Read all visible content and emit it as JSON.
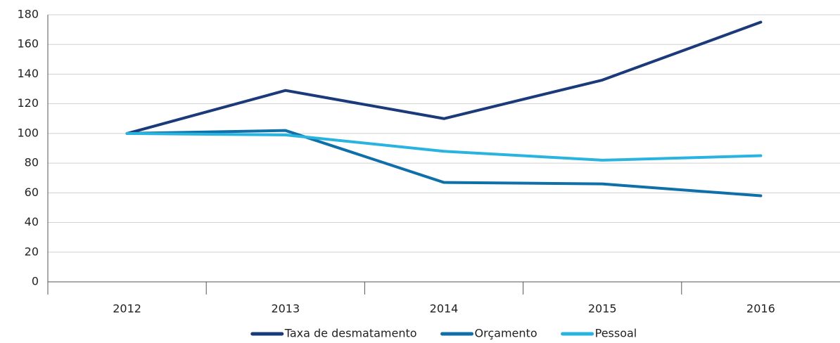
{
  "chart_data": {
    "type": "line",
    "categories": [
      "2012",
      "2013",
      "2014",
      "2015",
      "2016"
    ],
    "series": [
      {
        "name": "Taxa de desmatamento",
        "color": "#1b3a7a",
        "values": [
          100,
          129,
          110,
          136,
          175
        ]
      },
      {
        "name": "Orçamento",
        "color": "#0f6fa8",
        "values": [
          100,
          102,
          67,
          66,
          58
        ]
      },
      {
        "name": "Pessoal",
        "color": "#29b4e0",
        "values": [
          100,
          99,
          88,
          82,
          85
        ]
      }
    ],
    "ylim": [
      0,
      180
    ],
    "yticks": [
      0,
      20,
      40,
      60,
      80,
      100,
      120,
      140,
      160,
      180
    ],
    "grid": true
  }
}
